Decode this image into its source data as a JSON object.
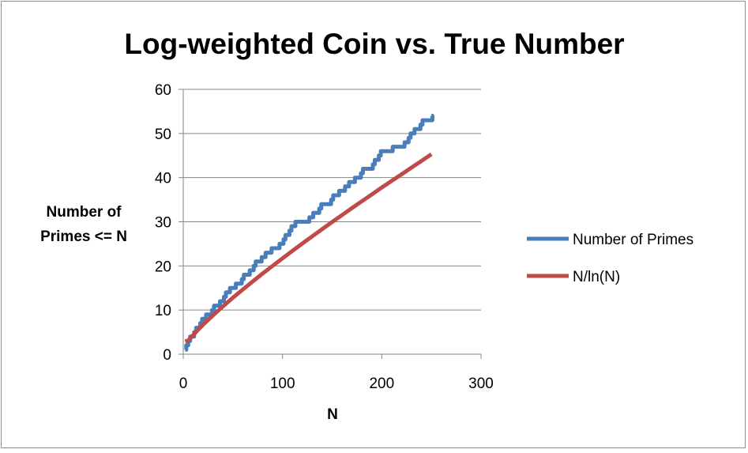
{
  "chart_data": {
    "type": "line",
    "title": "Log-weighted Coin vs. True Number",
    "xlabel": "N",
    "ylabel_lines": [
      "Number of",
      "Primes <= N"
    ],
    "xlim": [
      0,
      300
    ],
    "ylim": [
      0,
      60
    ],
    "xticks": [
      0,
      100,
      200,
      300
    ],
    "yticks": [
      0,
      10,
      20,
      30,
      40,
      50,
      60
    ],
    "grid": "horizontal",
    "legend": "right",
    "series": [
      {
        "name": "Number of Primes",
        "color": "#4a7ebb",
        "x": [
          2,
          3,
          5,
          7,
          11,
          13,
          17,
          19,
          23,
          29,
          31,
          37,
          41,
          43,
          47,
          53,
          59,
          61,
          67,
          71,
          73,
          79,
          83,
          89,
          97,
          101,
          103,
          107,
          109,
          113,
          127,
          131,
          137,
          139,
          149,
          151,
          157,
          163,
          167,
          173,
          179,
          181,
          191,
          193,
          197,
          199,
          211,
          223,
          227,
          229,
          233,
          239,
          241,
          251
        ],
        "y": [
          1,
          2,
          3,
          4,
          5,
          6,
          7,
          8,
          9,
          10,
          11,
          12,
          13,
          14,
          15,
          16,
          17,
          18,
          19,
          20,
          21,
          22,
          23,
          24,
          25,
          26,
          27,
          28,
          29,
          30,
          31,
          32,
          33,
          34,
          35,
          36,
          37,
          38,
          39,
          40,
          41,
          42,
          43,
          44,
          45,
          46,
          47,
          48,
          49,
          50,
          51,
          52,
          53,
          54
        ]
      },
      {
        "name": "N/ln(N)",
        "color": "#be4b48",
        "x": [
          2,
          5,
          10,
          15,
          20,
          30,
          40,
          50,
          60,
          70,
          80,
          90,
          100,
          110,
          120,
          130,
          140,
          150,
          160,
          170,
          180,
          190,
          200,
          210,
          220,
          230,
          240,
          250
        ],
        "y": [
          2.89,
          3.11,
          4.34,
          5.54,
          6.68,
          8.82,
          10.84,
          12.78,
          14.65,
          16.48,
          18.26,
          20.0,
          21.71,
          23.4,
          25.07,
          26.71,
          28.33,
          29.94,
          31.53,
          33.1,
          34.65,
          36.2,
          37.75,
          39.26,
          40.77,
          42.26,
          43.78,
          45.29
        ]
      }
    ]
  }
}
